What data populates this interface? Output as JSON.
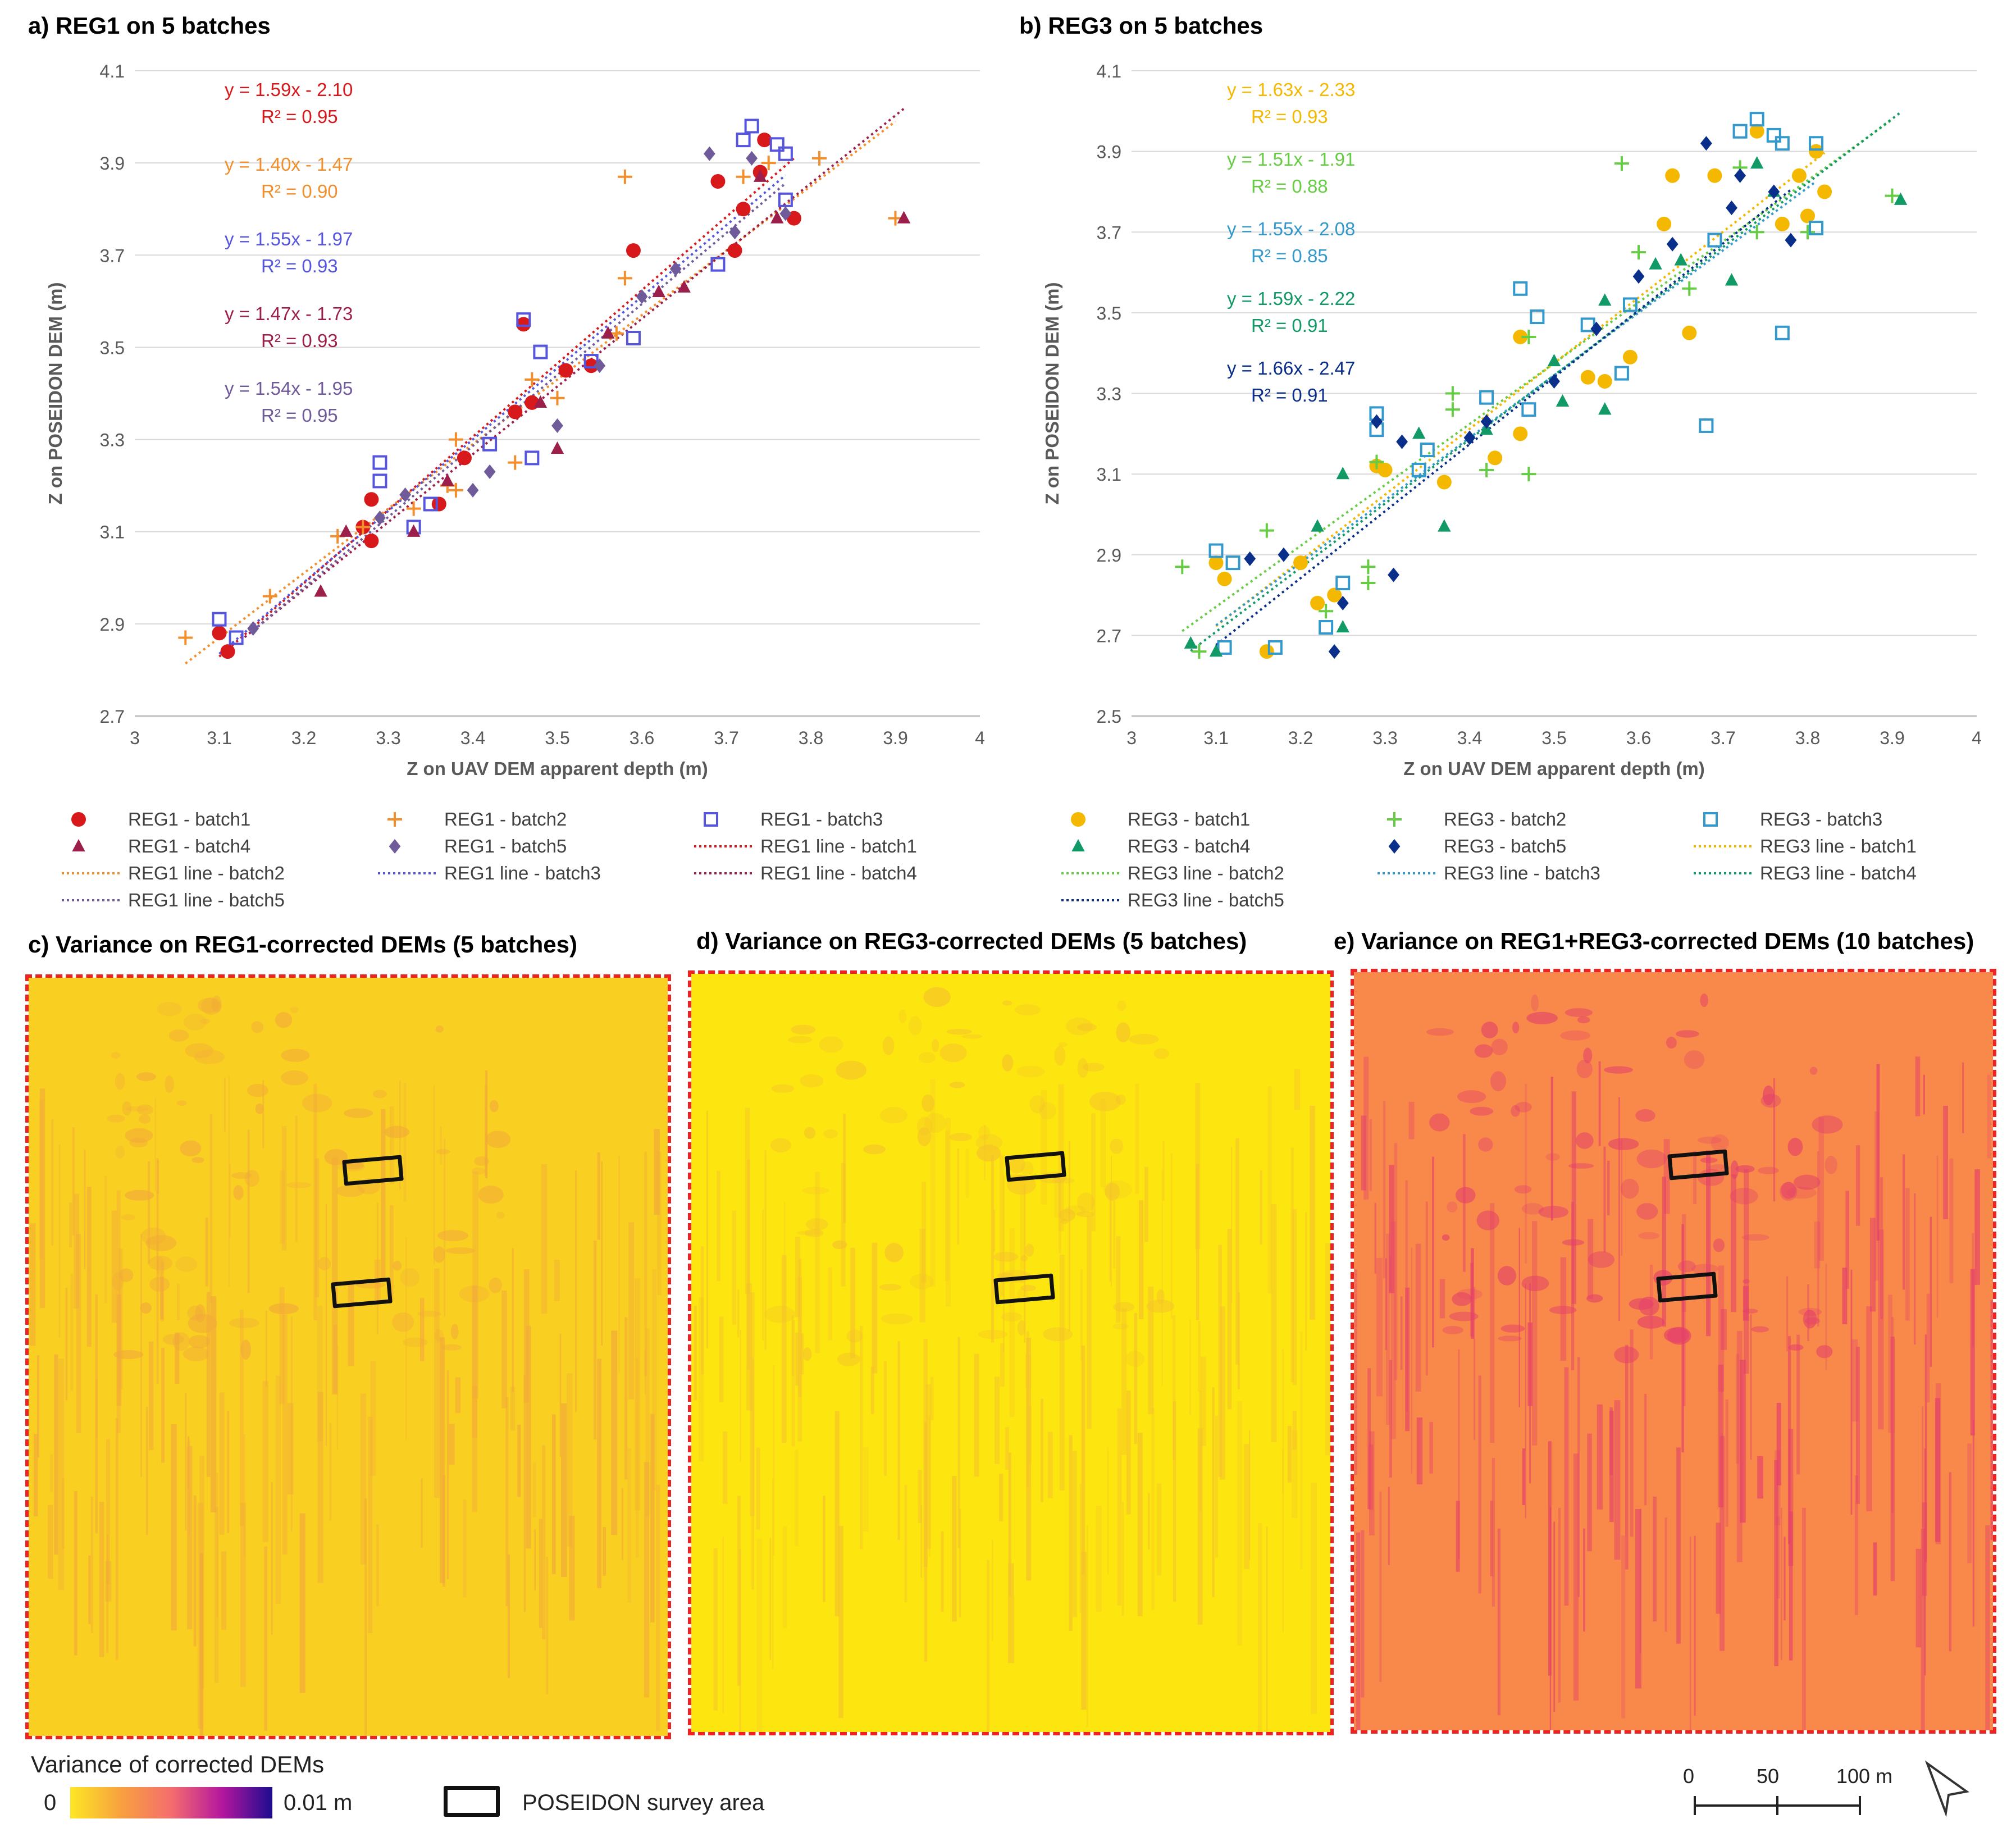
{
  "panels": {
    "a": {
      "title": "a) REG1 on 5 batches"
    },
    "b": {
      "title": "b) REG3 on 5 batches"
    },
    "c": {
      "title": "c) Variance on REG1-corrected DEMs (5 batches)"
    },
    "d": {
      "title": "d) Variance on REG3-corrected DEMs (5 batches)"
    },
    "e": {
      "title": "e) Variance on REG1+REG3-corrected DEMs (10 batches)"
    }
  },
  "chart_data": [
    {
      "type": "scatter",
      "title": "a) REG1 on 5 batches",
      "xlabel": "Z on UAV DEM apparent depth (m)",
      "ylabel": "Z on POSEIDON DEM (m)",
      "xlim": [
        3,
        4
      ],
      "ylim": [
        2.7,
        4.1
      ],
      "xticks": [
        "3",
        "3.1",
        "3.2",
        "3.3",
        "3.4",
        "3.5",
        "3.6",
        "3.7",
        "3.8",
        "3.9",
        "4"
      ],
      "yticks": [
        "2.7",
        "2.9",
        "3.1",
        "3.3",
        "3.5",
        "3.7",
        "3.9",
        "4.1"
      ],
      "series": [
        {
          "name": "REG1 - batch1",
          "color": "#d7191c",
          "marker": "circle",
          "points": [
            [
              3.1,
              2.88
            ],
            [
              3.11,
              2.84
            ],
            [
              3.27,
              3.11
            ],
            [
              3.28,
              3.17
            ],
            [
              3.28,
              3.08
            ],
            [
              3.36,
              3.16
            ],
            [
              3.39,
              3.26
            ],
            [
              3.45,
              3.36
            ],
            [
              3.46,
              3.55
            ],
            [
              3.47,
              3.38
            ],
            [
              3.51,
              3.45
            ],
            [
              3.54,
              3.46
            ],
            [
              3.59,
              3.71
            ],
            [
              3.69,
              3.86
            ],
            [
              3.71,
              3.71
            ],
            [
              3.72,
              3.8
            ],
            [
              3.74,
              3.88
            ],
            [
              3.745,
              3.95
            ],
            [
              3.78,
              3.78
            ]
          ]
        },
        {
          "name": "REG1 - batch2",
          "color": "#f28e2b",
          "marker": "plus",
          "points": [
            [
              3.06,
              2.87
            ],
            [
              3.16,
              2.96
            ],
            [
              3.24,
              3.09
            ],
            [
              3.27,
              3.11
            ],
            [
              3.33,
              3.15
            ],
            [
              3.37,
              3.2
            ],
            [
              3.38,
              3.3
            ],
            [
              3.38,
              3.19
            ],
            [
              3.45,
              3.25
            ],
            [
              3.47,
              3.43
            ],
            [
              3.5,
              3.39
            ],
            [
              3.57,
              3.53
            ],
            [
              3.58,
              3.65
            ],
            [
              3.58,
              3.87
            ],
            [
              3.72,
              3.87
            ],
            [
              3.75,
              3.9
            ],
            [
              3.81,
              3.91
            ],
            [
              3.9,
              3.78
            ]
          ]
        },
        {
          "name": "REG1 - batch3",
          "color": "#5555dd",
          "marker": "square",
          "points": [
            [
              3.1,
              2.91
            ],
            [
              3.12,
              2.87
            ],
            [
              3.29,
              3.25
            ],
            [
              3.29,
              3.21
            ],
            [
              3.33,
              3.11
            ],
            [
              3.35,
              3.16
            ],
            [
              3.42,
              3.29
            ],
            [
              3.46,
              3.56
            ],
            [
              3.47,
              3.26
            ],
            [
              3.48,
              3.49
            ],
            [
              3.54,
              3.47
            ],
            [
              3.59,
              3.52
            ],
            [
              3.69,
              3.68
            ],
            [
              3.72,
              3.95
            ],
            [
              3.73,
              3.98
            ],
            [
              3.76,
              3.94
            ],
            [
              3.77,
              3.92
            ],
            [
              3.77,
              3.82
            ]
          ]
        },
        {
          "name": "REG1 - batch4",
          "color": "#9c1f4b",
          "marker": "triangle",
          "points": [
            [
              3.22,
              2.97
            ],
            [
              3.25,
              3.1
            ],
            [
              3.33,
              3.1
            ],
            [
              3.37,
              3.21
            ],
            [
              3.48,
              3.38
            ],
            [
              3.5,
              3.28
            ],
            [
              3.56,
              3.53
            ],
            [
              3.62,
              3.62
            ],
            [
              3.65,
              3.63
            ],
            [
              3.74,
              3.87
            ],
            [
              3.76,
              3.78
            ],
            [
              3.91,
              3.78
            ]
          ]
        },
        {
          "name": "REG1 - batch5",
          "color": "#6f5a9a",
          "marker": "diamond",
          "points": [
            [
              3.14,
              2.89
            ],
            [
              3.29,
              3.13
            ],
            [
              3.32,
              3.18
            ],
            [
              3.4,
              3.19
            ],
            [
              3.42,
              3.23
            ],
            [
              3.5,
              3.33
            ],
            [
              3.55,
              3.46
            ],
            [
              3.6,
              3.61
            ],
            [
              3.64,
              3.67
            ],
            [
              3.68,
              3.92
            ],
            [
              3.71,
              3.75
            ],
            [
              3.73,
              3.91
            ],
            [
              3.77,
              3.79
            ]
          ]
        }
      ],
      "lines": [
        {
          "name": "REG1 line - batch1",
          "color": "#d7191c",
          "eq": "y = 1.59x - 2.10",
          "r2": "R² = 0.95",
          "slope": 1.59,
          "intercept": -2.1,
          "x": [
            3.1,
            3.78
          ]
        },
        {
          "name": "REG1 line - batch2",
          "color": "#f28e2b",
          "eq": "y = 1.40x - 1.47",
          "r2": "R² = 0.90",
          "slope": 1.4,
          "intercept": -1.47,
          "x": [
            3.06,
            3.9
          ]
        },
        {
          "name": "REG1 line - batch3",
          "color": "#5555dd",
          "eq": "y = 1.55x - 1.97",
          "r2": "R² = 0.93",
          "slope": 1.55,
          "intercept": -1.97,
          "x": [
            3.1,
            3.77
          ]
        },
        {
          "name": "REG1 line - batch4",
          "color": "#9c1f4b",
          "eq": "y = 1.47x - 1.73",
          "r2": "R² = 0.93",
          "slope": 1.47,
          "intercept": -1.73,
          "x": [
            3.13,
            3.91
          ]
        },
        {
          "name": "REG1 line - batch5",
          "color": "#6f5a9a",
          "eq": "y = 1.54x - 1.95",
          "r2": "R² = 0.95",
          "slope": 1.54,
          "intercept": -1.95,
          "x": [
            3.14,
            3.77
          ]
        }
      ]
    },
    {
      "type": "scatter",
      "title": "b) REG3 on 5 batches",
      "xlabel": "Z on UAV DEM apparent depth (m)",
      "ylabel": "Z on POSEIDON DEM (m)",
      "xlim": [
        3,
        4
      ],
      "ylim": [
        2.5,
        4.1
      ],
      "xticks": [
        "3",
        "3.1",
        "3.2",
        "3.3",
        "3.4",
        "3.5",
        "3.6",
        "3.7",
        "3.8",
        "3.9",
        "4"
      ],
      "yticks": [
        "2.5",
        "2.7",
        "2.9",
        "3.1",
        "3.3",
        "3.5",
        "3.7",
        "3.9",
        "4.1"
      ],
      "series": [
        {
          "name": "REG3 - batch1",
          "color": "#f5b800",
          "marker": "circle",
          "points": [
            [
              3.1,
              2.88
            ],
            [
              3.11,
              2.84
            ],
            [
              3.16,
              2.66
            ],
            [
              3.2,
              2.88
            ],
            [
              3.22,
              2.78
            ],
            [
              3.24,
              2.8
            ],
            [
              3.29,
              3.12
            ],
            [
              3.3,
              3.11
            ],
            [
              3.37,
              3.08
            ],
            [
              3.43,
              3.14
            ],
            [
              3.46,
              3.2
            ],
            [
              3.46,
              3.44
            ],
            [
              3.54,
              3.34
            ],
            [
              3.56,
              3.33
            ],
            [
              3.59,
              3.39
            ],
            [
              3.63,
              3.72
            ],
            [
              3.64,
              3.84
            ],
            [
              3.66,
              3.45
            ],
            [
              3.69,
              3.84
            ],
            [
              3.74,
              3.95
            ],
            [
              3.77,
              3.72
            ],
            [
              3.79,
              3.84
            ],
            [
              3.8,
              3.74
            ],
            [
              3.81,
              3.9
            ],
            [
              3.82,
              3.8
            ]
          ]
        },
        {
          "name": "REG3 - batch2",
          "color": "#66cc44",
          "marker": "plus",
          "points": [
            [
              3.06,
              2.87
            ],
            [
              3.08,
              2.66
            ],
            [
              3.16,
              2.96
            ],
            [
              3.23,
              2.76
            ],
            [
              3.28,
              2.87
            ],
            [
              3.28,
              2.83
            ],
            [
              3.29,
              3.13
            ],
            [
              3.38,
              3.3
            ],
            [
              3.38,
              3.26
            ],
            [
              3.42,
              3.11
            ],
            [
              3.47,
              3.1
            ],
            [
              3.47,
              3.44
            ],
            [
              3.58,
              3.87
            ],
            [
              3.6,
              3.65
            ],
            [
              3.66,
              3.56
            ],
            [
              3.72,
              3.86
            ],
            [
              3.74,
              3.7
            ],
            [
              3.8,
              3.7
            ],
            [
              3.9,
              3.79
            ]
          ]
        },
        {
          "name": "REG3 - batch3",
          "color": "#3399cc",
          "marker": "square",
          "points": [
            [
              3.1,
              2.91
            ],
            [
              3.11,
              2.67
            ],
            [
              3.12,
              2.88
            ],
            [
              3.17,
              2.67
            ],
            [
              3.23,
              2.72
            ],
            [
              3.25,
              2.83
            ],
            [
              3.29,
              3.25
            ],
            [
              3.29,
              3.21
            ],
            [
              3.34,
              3.11
            ],
            [
              3.35,
              3.16
            ],
            [
              3.42,
              3.29
            ],
            [
              3.46,
              3.56
            ],
            [
              3.47,
              3.26
            ],
            [
              3.48,
              3.49
            ],
            [
              3.54,
              3.47
            ],
            [
              3.58,
              3.35
            ],
            [
              3.59,
              3.52
            ],
            [
              3.68,
              3.22
            ],
            [
              3.69,
              3.68
            ],
            [
              3.72,
              3.95
            ],
            [
              3.74,
              3.98
            ],
            [
              3.76,
              3.94
            ],
            [
              3.77,
              3.45
            ],
            [
              3.77,
              3.92
            ],
            [
              3.81,
              3.92
            ],
            [
              3.81,
              3.71
            ]
          ]
        },
        {
          "name": "REG3 - batch4",
          "color": "#119966",
          "marker": "triangle",
          "points": [
            [
              3.07,
              2.68
            ],
            [
              3.1,
              2.66
            ],
            [
              3.22,
              2.97
            ],
            [
              3.25,
              2.72
            ],
            [
              3.25,
              3.1
            ],
            [
              3.34,
              3.2
            ],
            [
              3.37,
              2.97
            ],
            [
              3.42,
              3.21
            ],
            [
              3.5,
              3.38
            ],
            [
              3.51,
              3.28
            ],
            [
              3.56,
              3.53
            ],
            [
              3.56,
              3.26
            ],
            [
              3.62,
              3.62
            ],
            [
              3.65,
              3.63
            ],
            [
              3.71,
              3.58
            ],
            [
              3.74,
              3.87
            ],
            [
              3.76,
              3.8
            ],
            [
              3.91,
              3.78
            ]
          ]
        },
        {
          "name": "REG3 - batch5",
          "color": "#0a2f8a",
          "marker": "diamond",
          "points": [
            [
              3.14,
              2.89
            ],
            [
              3.18,
              2.9
            ],
            [
              3.24,
              2.66
            ],
            [
              3.25,
              2.78
            ],
            [
              3.29,
              3.23
            ],
            [
              3.31,
              2.85
            ],
            [
              3.32,
              3.18
            ],
            [
              3.4,
              3.19
            ],
            [
              3.42,
              3.23
            ],
            [
              3.5,
              3.33
            ],
            [
              3.55,
              3.46
            ],
            [
              3.6,
              3.59
            ],
            [
              3.64,
              3.67
            ],
            [
              3.68,
              3.92
            ],
            [
              3.71,
              3.76
            ],
            [
              3.72,
              3.84
            ],
            [
              3.76,
              3.8
            ],
            [
              3.78,
              3.68
            ]
          ]
        }
      ],
      "lines": [
        {
          "name": "REG3 line - batch1",
          "color": "#f5b800",
          "eq": "y = 1.63x - 2.33",
          "r2": "R² = 0.93",
          "slope": 1.63,
          "intercept": -2.33,
          "x": [
            3.1,
            3.82
          ]
        },
        {
          "name": "REG3 line - batch2",
          "color": "#66cc44",
          "eq": "y = 1.51x - 1.91",
          "r2": "R² = 0.88",
          "slope": 1.51,
          "intercept": -1.91,
          "x": [
            3.06,
            3.9
          ]
        },
        {
          "name": "REG3 line - batch3",
          "color": "#3399cc",
          "eq": "y = 1.55x - 2.08",
          "r2": "R² = 0.85",
          "slope": 1.55,
          "intercept": -2.08,
          "x": [
            3.1,
            3.81
          ]
        },
        {
          "name": "REG3 line - batch4",
          "color": "#119966",
          "eq": "y = 1.59x - 2.22",
          "r2": "R² = 0.91",
          "slope": 1.59,
          "intercept": -2.22,
          "x": [
            3.07,
            3.91
          ]
        },
        {
          "name": "REG3 line - batch5",
          "color": "#0a2f8a",
          "eq": "y = 1.66x - 2.47",
          "r2": "R² = 0.91",
          "slope": 1.66,
          "intercept": -2.47,
          "x": [
            3.1,
            3.78
          ]
        }
      ]
    }
  ],
  "colorbar": {
    "title": "Variance of corrected DEMs",
    "min_label": "0",
    "max_label": "0.01 m",
    "colors": [
      "#fde725",
      "#f8a13f",
      "#f46d6d",
      "#b5179e",
      "#1d0b8f"
    ]
  },
  "survey_legend": {
    "label": "POSEIDON survey area"
  },
  "scalebar": {
    "ticks": [
      "0",
      "50",
      "100 m"
    ]
  },
  "maps": {
    "c": {
      "base": "#f9cf21",
      "streak": "#f2a93a"
    },
    "d": {
      "base": "#fde60f",
      "streak": "#f5c22a"
    },
    "e": {
      "base": "#f8894a",
      "streak": "#e4406a"
    }
  }
}
